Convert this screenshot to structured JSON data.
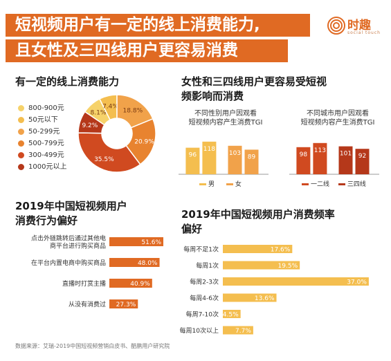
{
  "header": {
    "title_line1": "短视频用户有一定的线上消费能力,",
    "title_line2": "且女性及三四线用户更容易消费",
    "brand_name": "时趣",
    "brand_sub": "social touch"
  },
  "colors": {
    "accent": "#e06a23",
    "dark_red": "#b5381a",
    "red": "#d04a20",
    "orange": "#e8832f",
    "light_orange": "#f1a24a",
    "yellow": "#f4be4f",
    "pale_yellow": "#f6d26a"
  },
  "sections": {
    "pie_title": "有一定的线上消费能力",
    "tgi_title_line1": "女性和三四线用户更容易受短视",
    "tgi_title_line2": "频影响而消费",
    "behavior_title_line1": "2019年中国短视频用户",
    "behavior_title_line2": "消费行为偏好",
    "freq_title_line1": "2019年中国短视频用户消费频率",
    "freq_title_line2": "偏好"
  },
  "chart_data": [
    {
      "type": "pie",
      "title": "有一定的线上消费能力",
      "categories": [
        "800-900元",
        "50元以下",
        "50-299元",
        "500-799元",
        "300-499元",
        "1000元以上"
      ],
      "values": [
        8.1,
        7.4,
        18.8,
        20.9,
        35.5,
        9.2
      ],
      "value_labels": [
        "8.1%",
        "7.4%",
        "18.8%",
        "20.9%",
        "35.5%",
        "9.2%"
      ],
      "colors": [
        "#f6d26a",
        "#f4be4f",
        "#f1a24a",
        "#e8832f",
        "#d04a20",
        "#b5381a"
      ],
      "legend_position": "left"
    },
    {
      "type": "bar",
      "title": "不同性别用户因观看短视频内容产生消费TGI",
      "categories": [
        "男",
        "女"
      ],
      "series": [
        {
          "name": "男",
          "values": [
            96,
            118
          ]
        },
        {
          "name": "女",
          "values": [
            103,
            89
          ]
        }
      ],
      "ylim": [
        0,
        130
      ],
      "colors": [
        "#f4be4f",
        "#f1a24a"
      ]
    },
    {
      "type": "bar",
      "title": "不同城市用户因观看短视频内容产生消费TGI",
      "categories": [
        "一二线",
        "三四线"
      ],
      "series": [
        {
          "name": "一二线",
          "values": [
            98,
            113
          ]
        },
        {
          "name": "三四线",
          "values": [
            101,
            92
          ]
        }
      ],
      "ylim": [
        0,
        130
      ],
      "colors": [
        "#d04a20",
        "#b5381a"
      ]
    },
    {
      "type": "bar",
      "title": "2019年中国短视频用户消费行为偏好",
      "orientation": "horizontal",
      "categories": [
        "点击外链跳转后通过其他电商平台进行购买商品",
        "在平台内置电商中购买商品",
        "直播时打赏主播",
        "从没有消费过"
      ],
      "values": [
        51.6,
        48.0,
        40.9,
        27.3
      ],
      "value_labels": [
        "51.6%",
        "48.0%",
        "40.9%",
        "27.3%"
      ],
      "xlim": [
        0,
        60
      ],
      "color": "#e06a23"
    },
    {
      "type": "bar",
      "title": "2019年中国短视频用户消费频率偏好",
      "orientation": "horizontal",
      "categories": [
        "每周不足1次",
        "每周1次",
        "每周2-3次",
        "每周4-6次",
        "每周7-10次",
        "每周10次以上"
      ],
      "values": [
        17.6,
        19.5,
        37.0,
        13.6,
        4.5,
        7.7
      ],
      "value_labels": [
        "17.6%",
        "19.5%",
        "37.0%",
        "13.6%",
        "4.5%",
        "7.7%"
      ],
      "xlim": [
        0,
        40
      ],
      "color": "#f4be4f"
    }
  ],
  "behavior_labels": [
    [
      "点击外链跳转后通过其他电",
      "商平台进行购买商品"
    ],
    [
      "在平台内置电商中购买商品"
    ],
    [
      "直播时打赏主播"
    ],
    [
      "从没有消费过"
    ]
  ],
  "tgi_subtitles": {
    "gender_line1": "不同性别用户因观看",
    "gender_line2": "短视频内容产生消费TGI",
    "city_line1": "不同城市用户因观看",
    "city_line2": "短视频内容产生消费TGI"
  },
  "source": "数据来源：艾瑞-2019中国短视频营销白皮书、酷鹏用户研究院"
}
